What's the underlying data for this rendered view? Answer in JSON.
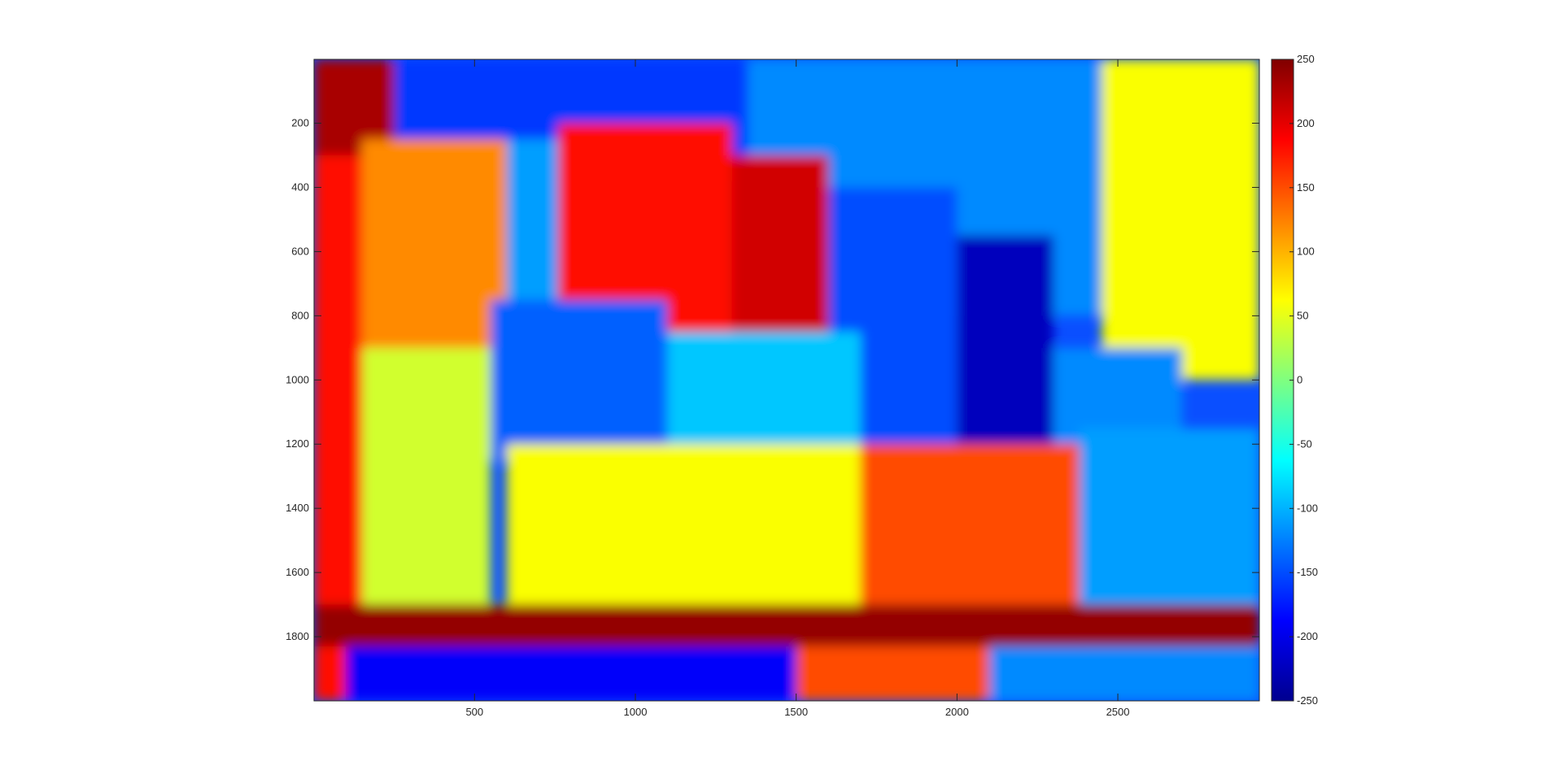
{
  "chart_data": {
    "type": "heatmap",
    "title": "",
    "xlabel": "",
    "ylabel": "",
    "x_ticks": [
      500,
      1000,
      1500,
      2000,
      2500
    ],
    "y_ticks": [
      200,
      400,
      600,
      800,
      1000,
      1200,
      1400,
      1600,
      1800
    ],
    "xlim": [
      1,
      2940
    ],
    "ylim": [
      1,
      2000
    ],
    "y_direction": "reverse",
    "colormap": "jet",
    "clim": [
      -250,
      250
    ],
    "colorbar_ticks": [
      250,
      200,
      150,
      100,
      50,
      0,
      -50,
      -100,
      -150,
      -200,
      -250
    ],
    "colorbar_location": "right",
    "regions": [
      {
        "x": [
          30,
          2940
        ],
        "y": [
          1,
          380
        ],
        "value": -160
      },
      {
        "x": [
          1350,
          2940
        ],
        "y": [
          1,
          800
        ],
        "value": -120
      },
      {
        "x": [
          2450,
          2940
        ],
        "y": [
          1,
          1000
        ],
        "value": 60
      },
      {
        "x": [
          1,
          250
        ],
        "y": [
          1,
          300
        ],
        "value": 230
      },
      {
        "x": [
          1,
          150
        ],
        "y": [
          300,
          2000
        ],
        "value": 180
      },
      {
        "x": [
          150,
          600
        ],
        "y": [
          250,
          900
        ],
        "value": 120
      },
      {
        "x": [
          600,
          760
        ],
        "y": [
          250,
          900
        ],
        "value": -110
      },
      {
        "x": [
          760,
          1300
        ],
        "y": [
          200,
          900
        ],
        "value": 180
      },
      {
        "x": [
          1300,
          1600
        ],
        "y": [
          300,
          900
        ],
        "value": 210
      },
      {
        "x": [
          1600,
          2000
        ],
        "y": [
          400,
          1200
        ],
        "value": -150
      },
      {
        "x": [
          2000,
          2300
        ],
        "y": [
          550,
          1200
        ],
        "value": -220
      },
      {
        "x": [
          2300,
          2700
        ],
        "y": [
          900,
          1200
        ],
        "value": -120
      },
      {
        "x": [
          550,
          1100
        ],
        "y": [
          750,
          1250
        ],
        "value": -140
      },
      {
        "x": [
          1100,
          1700
        ],
        "y": [
          850,
          1250
        ],
        "value": -90
      },
      {
        "x": [
          150,
          550
        ],
        "y": [
          900,
          1800
        ],
        "value": 40
      },
      {
        "x": [
          600,
          1700
        ],
        "y": [
          1200,
          1700
        ],
        "value": 60
      },
      {
        "x": [
          1700,
          2380
        ],
        "y": [
          1200,
          1700
        ],
        "value": 150
      },
      {
        "x": [
          2380,
          2940
        ],
        "y": [
          1150,
          1850
        ],
        "value": -110
      },
      {
        "x": [
          1,
          2940
        ],
        "y": [
          1700,
          1830
        ],
        "value": 240
      },
      {
        "x": [
          100,
          1500
        ],
        "y": [
          1830,
          2000
        ],
        "value": -190
      },
      {
        "x": [
          1500,
          2100
        ],
        "y": [
          1830,
          2000
        ],
        "value": 150
      },
      {
        "x": [
          2100,
          2940
        ],
        "y": [
          1830,
          2000
        ],
        "value": -120
      }
    ]
  }
}
